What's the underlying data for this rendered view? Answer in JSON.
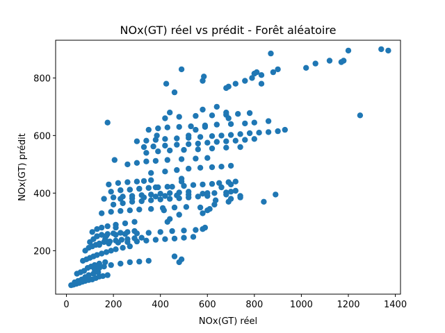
{
  "chart_data": {
    "type": "scatter",
    "title": "NOx(GT) réel vs prédit - Forêt aléatoire",
    "xlabel": "NOx(GT) réel",
    "ylabel": "NOx(GT) prédit",
    "xlim": [
      -46,
      1422
    ],
    "ylim": [
      49,
      931
    ],
    "xticks": [
      0,
      200,
      400,
      600,
      800,
      1000,
      1200,
      1400
    ],
    "yticks": [
      200,
      400,
      600,
      800
    ],
    "grid": false,
    "legend": "none",
    "point_color": "#1f77b4",
    "x": [
      20,
      30,
      42,
      55,
      68,
      80,
      95,
      110,
      125,
      140,
      155,
      175,
      45,
      60,
      75,
      90,
      105,
      120,
      140,
      165,
      35,
      50,
      65,
      80,
      95,
      115,
      135,
      70,
      85,
      100,
      115,
      130,
      150,
      170,
      190,
      210,
      240,
      270,
      80,
      95,
      110,
      125,
      140,
      160,
      185,
      210,
      235,
      260,
      290,
      320,
      100,
      115,
      130,
      150,
      175,
      200,
      230,
      260,
      290,
      110,
      130,
      150,
      175,
      210,
      250,
      290,
      120,
      140,
      160,
      190,
      230,
      270,
      310,
      350,
      140,
      180,
      220,
      260,
      300,
      340,
      380,
      420,
      460,
      500,
      540,
      130,
      170,
      210,
      250,
      300,
      350,
      400,
      450,
      500,
      550,
      580,
      150,
      190,
      230,
      270,
      310,
      360,
      410,
      460,
      510,
      160,
      200,
      240,
      280,
      320,
      360,
      400,
      440,
      480,
      520,
      190,
      230,
      270,
      310,
      350,
      390,
      430,
      180,
      220,
      260,
      300,
      330,
      360,
      230,
      280,
      330,
      380,
      420,
      470,
      520,
      580,
      630,
      680,
      700,
      720,
      200,
      240,
      280,
      320,
      360,
      400,
      440,
      480,
      520,
      560,
      600,
      230,
      270,
      310,
      350,
      380,
      450,
      500,
      540,
      580,
      620,
      650,
      690,
      260,
      300,
      340,
      380,
      430,
      490,
      550,
      600,
      340,
      390,
      440,
      500,
      560,
      620,
      680,
      740,
      300,
      340,
      380,
      420,
      470,
      520,
      570,
      620,
      660,
      700,
      740,
      780,
      820,
      860,
      900,
      930,
      330,
      370,
      420,
      470,
      520,
      560,
      600,
      640,
      680,
      720,
      760,
      800,
      350,
      390,
      430,
      480,
      530,
      590,
      640,
      700,
      760,
      800,
      860,
      420,
      480,
      550,
      620,
      680,
      730,
      780,
      360,
      420,
      470,
      520,
      570,
      620,
      660,
      700,
      580,
      640,
      680,
      690,
      175,
      205,
      385,
      440,
      425,
      490,
      580,
      585,
      165,
      210,
      415,
      460,
      480,
      490,
      570,
      740,
      590,
      600,
      635,
      660,
      680,
      700,
      720,
      740,
      430,
      440,
      480,
      580,
      600,
      610,
      630,
      690,
      700,
      460,
      520,
      550,
      590,
      720,
      760,
      790,
      810,
      830,
      880,
      900,
      840,
      890,
      1020,
      1060,
      1120,
      1170,
      1180,
      1200,
      1250,
      1340,
      1370,
      870,
      830,
      800,
      490,
      490,
      690,
      680
    ],
    "y": [
      80,
      82,
      85,
      88,
      92,
      95,
      98,
      100,
      105,
      110,
      112,
      115,
      120,
      125,
      130,
      140,
      145,
      150,
      155,
      160,
      90,
      95,
      100,
      108,
      115,
      120,
      125,
      165,
      170,
      175,
      180,
      185,
      190,
      195,
      200,
      205,
      210,
      215,
      200,
      210,
      215,
      220,
      225,
      230,
      232,
      235,
      238,
      240,
      243,
      245,
      230,
      240,
      250,
      255,
      258,
      260,
      262,
      265,
      268,
      265,
      275,
      280,
      285,
      290,
      295,
      300,
      135,
      140,
      145,
      150,
      155,
      160,
      162,
      165,
      220,
      225,
      228,
      230,
      232,
      235,
      238,
      240,
      242,
      245,
      248,
      250,
      252,
      255,
      258,
      260,
      262,
      265,
      268,
      270,
      272,
      275,
      330,
      335,
      338,
      340,
      343,
      345,
      348,
      350,
      352,
      380,
      385,
      388,
      390,
      393,
      395,
      398,
      400,
      402,
      405,
      405,
      410,
      412,
      415,
      418,
      420,
      422,
      430,
      435,
      438,
      440,
      442,
      445,
      380,
      382,
      385,
      388,
      390,
      392,
      395,
      398,
      400,
      402,
      405,
      408,
      360,
      365,
      370,
      372,
      375,
      378,
      380,
      382,
      385,
      388,
      390,
      410,
      412,
      415,
      418,
      420,
      422,
      425,
      428,
      430,
      432,
      435,
      438,
      500,
      505,
      510,
      512,
      515,
      518,
      520,
      522,
      540,
      545,
      548,
      550,
      552,
      555,
      558,
      560,
      580,
      582,
      585,
      588,
      590,
      592,
      595,
      598,
      600,
      602,
      605,
      608,
      610,
      612,
      615,
      620,
      560,
      562,
      565,
      568,
      570,
      572,
      575,
      578,
      580,
      582,
      585,
      588,
      620,
      625,
      628,
      630,
      632,
      635,
      638,
      640,
      642,
      645,
      650,
      660,
      665,
      668,
      670,
      672,
      675,
      678,
      470,
      475,
      480,
      485,
      488,
      490,
      492,
      495,
      690,
      700,
      680,
      660,
      645,
      515,
      600,
      680,
      780,
      830,
      790,
      805,
      240,
      280,
      340,
      180,
      160,
      170,
      350,
      390,
      280,
      400,
      375,
      420,
      395,
      430,
      440,
      385,
      300,
      310,
      325,
      330,
      340,
      345,
      360,
      370,
      380,
      750,
      600,
      620,
      630,
      780,
      790,
      800,
      820,
      810,
      820,
      830,
      370,
      395,
      835,
      850,
      860,
      855,
      860,
      895,
      670,
      900,
      895,
      885,
      780,
      815,
      450,
      440,
      770,
      765
    ]
  }
}
